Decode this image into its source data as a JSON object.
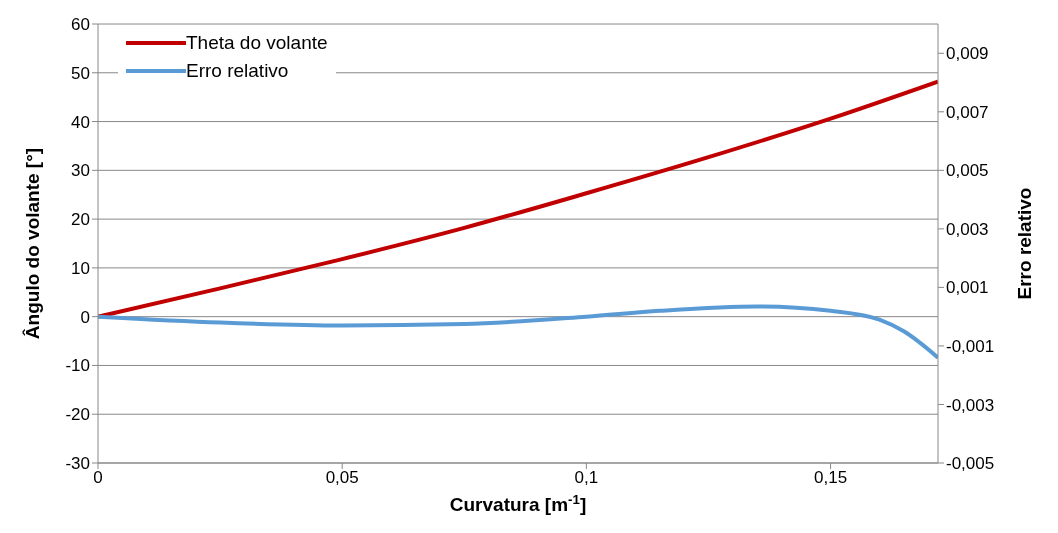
{
  "chart_data": {
    "type": "line",
    "xlabel": "Curvatura [m$^{-1}$]",
    "ylabel": "Ângulo do volante [°]",
    "y2label": "Erro relativo",
    "xlim": [
      0,
      0.172
    ],
    "xticks": [
      0,
      {
        "value": 0.05,
        "label": "0,05"
      },
      {
        "value": 0.1,
        "label": "0,1"
      },
      {
        "value": 0.15,
        "label": "0,15"
      }
    ],
    "ylim": [
      -30,
      60
    ],
    "yticks": [
      -30,
      -20,
      -10,
      0,
      10,
      20,
      30,
      40,
      50,
      60
    ],
    "y2lim": [
      -0.005,
      0.01
    ],
    "y2ticks": [
      {
        "value": -0.005,
        "label": "-0,005"
      },
      {
        "value": -0.003,
        "label": "-0,003"
      },
      {
        "value": -0.001,
        "label": "-0,001"
      },
      {
        "value": 0.001,
        "label": "0,001"
      },
      {
        "value": 0.003,
        "label": "0,003"
      },
      {
        "value": 0.005,
        "label": "0,005"
      },
      {
        "value": 0.007,
        "label": "0,007"
      },
      {
        "value": 0.009,
        "label": "0,009"
      }
    ],
    "grid": "y",
    "legend": "top left",
    "marker": "none",
    "line_style": "solid",
    "series": [
      {
        "name": "Theta do volante",
        "color": "#c00000",
        "x": [
          0,
          0.025,
          0.05,
          0.075,
          0.1,
          0.125,
          0.15,
          0.172
        ],
        "values": [
          0,
          5.8,
          11.8,
          18.2,
          25.3,
          32.7,
          40.6,
          48.2
        ]
      },
      {
        "name": "Erro relativo",
        "color": "#5b9bd5",
        "axis": "y2",
        "x": [
          0,
          0.025,
          0.05,
          0.075,
          0.1,
          0.115,
          0.135,
          0.15,
          0.16,
          0.165,
          0.172
        ],
        "values": [
          0,
          -0.0002,
          -0.0003,
          -0.00025,
          0,
          0.0002,
          0.00035,
          0.0002,
          -0.0001,
          -0.0005,
          -0.0014
        ]
      }
    ]
  }
}
